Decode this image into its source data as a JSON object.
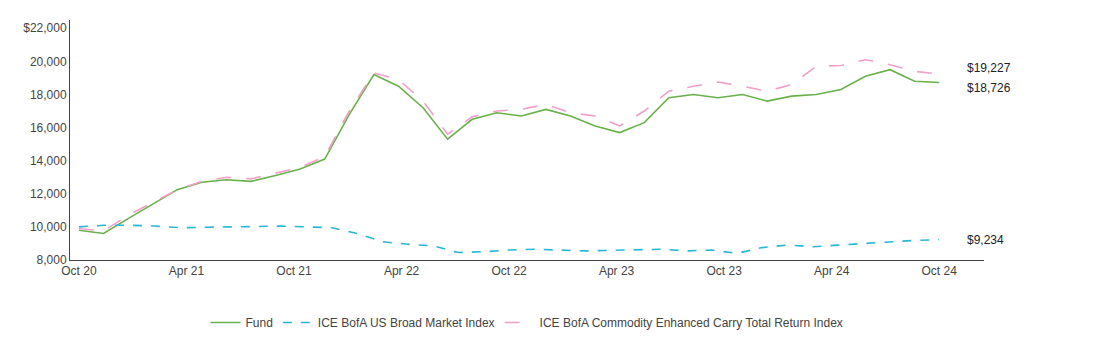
{
  "chart_data": {
    "type": "line",
    "xlim": [
      -0.5,
      50.5
    ],
    "xticks": [
      {
        "value": 0,
        "label": "Oct 20"
      },
      {
        "value": 6,
        "label": "Apr 21"
      },
      {
        "value": 12,
        "label": "Oct 21"
      },
      {
        "value": 18,
        "label": "Apr 22"
      },
      {
        "value": 24,
        "label": "Oct 22"
      },
      {
        "value": 30,
        "label": "Apr 23"
      },
      {
        "value": 36,
        "label": "Oct 23"
      },
      {
        "value": 42,
        "label": "Apr 24"
      },
      {
        "value": 48,
        "label": "Oct 24"
      }
    ],
    "ylim": [
      8000,
      22500
    ],
    "yticks": [
      {
        "value": 8000,
        "label": "8,000"
      },
      {
        "value": 10000,
        "label": "10,000"
      },
      {
        "value": 12000,
        "label": "12,000"
      },
      {
        "value": 14000,
        "label": "14,000"
      },
      {
        "value": 16000,
        "label": "16,000"
      },
      {
        "value": 18000,
        "label": "18,000"
      },
      {
        "value": 20000,
        "label": "20,000"
      },
      {
        "value": 22000,
        "label": "$22,000"
      }
    ],
    "grid": false,
    "legend": "bottom",
    "series": [
      {
        "name": "Fund",
        "color": "#6ab04c",
        "line_style": "solid",
        "x": [
          0,
          1.3714285714,
          2.7428571429,
          4.1142857143,
          5.4857142857,
          6.8571428571,
          8.2285714286,
          9.6,
          10.9714285714,
          12.3428571429,
          13.7142857143,
          15.0857142857,
          16.4571428571,
          17.8285714286,
          19.2,
          20.5714285714,
          21.9428571429,
          23.3142857143,
          24.6857142857,
          26.0571428571,
          27.4285714286,
          28.8,
          30.1714285714,
          31.5428571429,
          32.9142857143,
          34.2857142857,
          35.6571428571,
          37.0285714286,
          38.4,
          39.7714285714,
          41.1428571429,
          42.5142857143,
          43.8857142857,
          45.2571428571,
          46.6285714286,
          48
        ],
        "values": [
          9800,
          9600,
          10500,
          11400,
          12250,
          12700,
          12850,
          12750,
          13100,
          13500,
          14100,
          16800,
          19200,
          18500,
          17200,
          15300,
          16500,
          16900,
          16700,
          17100,
          16700,
          16100,
          15700,
          16300,
          17800,
          18000,
          17800,
          18000,
          17600,
          17900,
          18000,
          18300,
          19100,
          19500,
          18800,
          18726
        ]
      },
      {
        "name": "ICE BofA US Broad Market Index",
        "color": "#29b6d8",
        "line_style": "dashed",
        "x": [
          0,
          1.4117647059,
          2.8235294118,
          4.2352941176,
          5.6470588235,
          7.0588235294,
          8.4705882353,
          9.8823529412,
          11.2941176471,
          12.7058823529,
          14.1176470588,
          15.5294117647,
          16.9411764706,
          18.3529411765,
          19.7647058824,
          21.1764705882,
          22.5882352941,
          24,
          25.4117647059,
          26.8235294118,
          28.2352941176,
          29.6470588235,
          31.0588235294,
          32.4705882353,
          33.8823529412,
          35.2941176471,
          36.7058823529,
          38.1176470588,
          39.5294117647,
          40.9411764706,
          42.3529411765,
          43.7647058824,
          45.1764705882,
          46.5882352941,
          48
        ],
        "values": [
          10000,
          10100,
          10100,
          10050,
          9950,
          9970,
          9980,
          9990,
          10050,
          10000,
          9950,
          9600,
          9100,
          8950,
          8850,
          8450,
          8500,
          8600,
          8650,
          8600,
          8550,
          8580,
          8620,
          8650,
          8550,
          8600,
          8400,
          8750,
          8900,
          8800,
          8900,
          9000,
          9100,
          9180,
          9234
        ]
      },
      {
        "name": "ICE BofA Commodity Enhanced Carry Total Return Index",
        "color": "#f0a0c8",
        "line_style": "long_dashed",
        "x": [
          0,
          1.3714285714,
          2.7428571429,
          4.1142857143,
          5.4857142857,
          6.8571428571,
          8.2285714286,
          9.6,
          10.9714285714,
          12.3428571429,
          13.7142857143,
          15.0857142857,
          16.4571428571,
          17.8285714286,
          19.2,
          20.5714285714,
          21.9428571429,
          23.3142857143,
          24.6857142857,
          26.0571428571,
          27.4285714286,
          28.8,
          30.1714285714,
          31.5428571429,
          32.9142857143,
          34.2857142857,
          35.6571428571,
          37.0285714286,
          38.4,
          39.7714285714,
          41.1428571429,
          42.5142857143,
          43.8857142857,
          45.2571428571,
          46.6285714286,
          48
        ],
        "values": [
          9900,
          9750,
          10700,
          11450,
          12250,
          12750,
          13000,
          12900,
          13250,
          13600,
          14250,
          17000,
          19300,
          18900,
          17600,
          15600,
          16650,
          17000,
          17100,
          17400,
          16900,
          16700,
          16100,
          17000,
          18200,
          18500,
          18750,
          18500,
          18200,
          18600,
          19700,
          19750,
          20100,
          19800,
          19400,
          19227
        ]
      }
    ],
    "annotations": [
      {
        "text": "$19,227",
        "x": 48,
        "y": 19227
      },
      {
        "text": "$18,726",
        "x": 48,
        "y": 18726
      },
      {
        "text": "$9,234",
        "x": 48,
        "y": 9234
      }
    ]
  }
}
